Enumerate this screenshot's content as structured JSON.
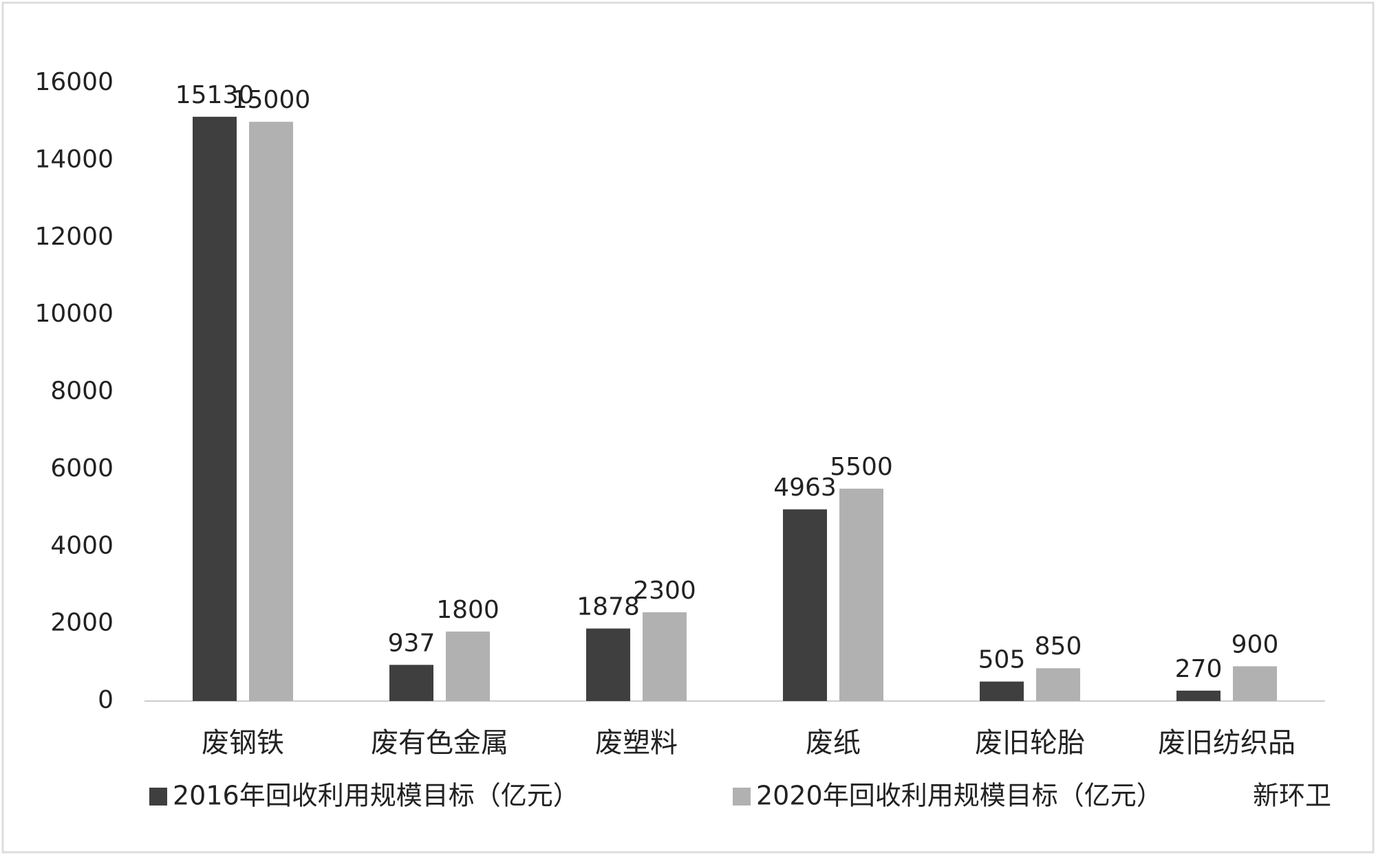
{
  "chart_data": {
    "type": "bar",
    "categories": [
      "废钢铁",
      "废有色金属",
      "废塑料",
      "废纸",
      "废旧轮胎",
      "废旧纺织品"
    ],
    "series": [
      {
        "name": "2016年回收利用规模目标（亿元）",
        "color": "#3f3f3f",
        "values": [
          15130,
          937,
          1878,
          4963,
          505,
          270
        ]
      },
      {
        "name": "2020年回收利用规模目标（亿元）",
        "color": "#b1b1b1",
        "values": [
          15000,
          1800,
          2300,
          5500,
          850,
          900
        ]
      }
    ],
    "ylim": [
      0,
      16000
    ],
    "yticks": [
      0,
      2000,
      4000,
      6000,
      8000,
      10000,
      12000,
      14000,
      16000
    ],
    "grid": false,
    "legend": "bottom",
    "watermark": "新环卫"
  }
}
